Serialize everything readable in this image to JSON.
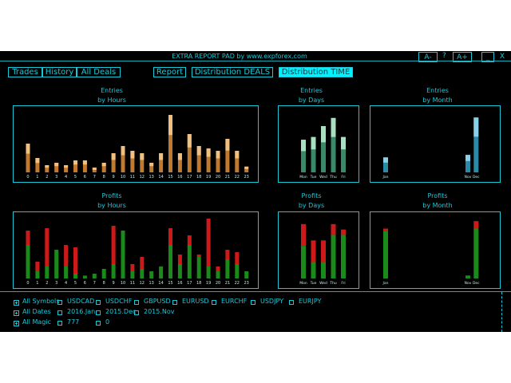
{
  "window": {
    "title": "EXTRA REPORT PAD by www.expforex.com",
    "font_minus": "A-",
    "font_help": "?",
    "font_plus": "A+",
    "minimize": "_",
    "close": "X"
  },
  "tabs": {
    "left": [
      "Trades",
      "History",
      "All Deals"
    ],
    "report": "Report",
    "dist_deals": "Distribution DEALS",
    "dist_time": "Distribution TIME",
    "active": "Distribution TIME"
  },
  "colors": {
    "accent": "#19c8d8",
    "entries_bar": "#c07a30",
    "entries_top": "#f0c080",
    "days_bar": "#3a8a6a",
    "days_top": "#a8e0c0",
    "month_bar": "#2a8aa8",
    "month_top": "#8ad0e8",
    "profit_green": "#1a8a1a",
    "profit_red": "#cc1a1a"
  },
  "chart_titles": {
    "entries_hours": [
      "Entries",
      "by Hours"
    ],
    "entries_days": [
      "Entries",
      "by Days"
    ],
    "entries_month": [
      "Entries",
      "by Month"
    ],
    "profits_hours": [
      "Profits",
      "by Hours"
    ],
    "profits_days": [
      "Profits",
      "by Days"
    ],
    "profits_month": [
      "Profits",
      "by Month"
    ]
  },
  "chart_data": [
    {
      "id": "entries_hours",
      "type": "bar",
      "categories": [
        "0",
        "1",
        "2",
        "3",
        "4",
        "5",
        "6",
        "7",
        "8",
        "9",
        "10",
        "11",
        "12",
        "13",
        "14",
        "15",
        "16",
        "17",
        "18",
        "19",
        "20",
        "21",
        "22",
        "23"
      ],
      "values": [
        6,
        3,
        1.5,
        2,
        1.5,
        2.5,
        2.5,
        1,
        2,
        4,
        5.5,
        4.5,
        4,
        2,
        4,
        12,
        4,
        8,
        5.5,
        5,
        4.5,
        7,
        4.5,
        1.2
      ]
    },
    {
      "id": "entries_days",
      "type": "bar",
      "categories": [
        "Mon",
        "Tue",
        "Wed",
        "Thu",
        "Fri"
      ],
      "values": [
        6,
        6.5,
        8.5,
        10,
        6.5
      ]
    },
    {
      "id": "entries_month",
      "type": "bar",
      "categories": [
        "Jan",
        "Feb",
        "Mar",
        "Apr",
        "May",
        "Jun",
        "Jul",
        "Aug",
        "Sep",
        "Oct",
        "Nov",
        "Dec"
      ],
      "tick_labels": [
        "Jan",
        "",
        "",
        "",
        "",
        "",
        "",
        "",
        "",
        "",
        "Nov",
        "Dec"
      ],
      "values": [
        3,
        0,
        0,
        0,
        0,
        0,
        0,
        0,
        0,
        0,
        3.5,
        11
      ]
    },
    {
      "id": "profits_hours",
      "type": "bar",
      "categories": [
        "0",
        "1",
        "2",
        "3",
        "4",
        "5",
        "6",
        "7",
        "8",
        "9",
        "10",
        "11",
        "12",
        "13",
        "14",
        "15",
        "16",
        "17",
        "18",
        "19",
        "20",
        "21",
        "22",
        "23"
      ],
      "series": [
        {
          "name": "profit",
          "values": [
            7,
            1.5,
            2.5,
            6,
            2.5,
            1,
            0.6,
            1,
            2,
            3,
            10,
            1.5,
            2,
            1.5,
            2.5,
            7,
            3,
            7,
            4.5,
            2.5,
            1.5,
            4,
            3,
            1.5
          ]
        },
        {
          "name": "loss",
          "values": [
            3,
            2,
            8,
            0,
            4.5,
            5.5,
            0,
            0,
            0,
            8,
            0,
            1.5,
            2.5,
            0,
            0,
            3.5,
            2,
            2,
            0.5,
            10,
            1,
            2,
            2.5,
            0
          ]
        }
      ]
    },
    {
      "id": "profits_days",
      "type": "bar",
      "categories": [
        "Mon",
        "Tue",
        "Wed",
        "Thu",
        "Fri"
      ],
      "series": [
        {
          "name": "profit",
          "values": [
            6,
            3,
            3,
            8,
            8
          ]
        },
        {
          "name": "loss",
          "values": [
            4,
            4,
            4,
            2,
            1
          ]
        }
      ]
    },
    {
      "id": "profits_month",
      "type": "bar",
      "categories": [
        "Jan",
        "Feb",
        "Mar",
        "Apr",
        "May",
        "Jun",
        "Jul",
        "Aug",
        "Sep",
        "Oct",
        "Nov",
        "Dec"
      ],
      "tick_labels": [
        "Jan",
        "",
        "",
        "",
        "",
        "",
        "",
        "",
        "",
        "",
        "Nov",
        "Dec"
      ],
      "series": [
        {
          "name": "profit",
          "values": [
            9.5,
            0,
            0,
            0,
            0,
            0,
            0,
            0,
            0,
            0,
            0.6,
            10
          ]
        },
        {
          "name": "loss",
          "values": [
            0.5,
            0,
            0,
            0,
            0,
            0,
            0,
            0,
            0,
            0,
            0,
            1.5
          ]
        }
      ]
    }
  ],
  "filters": {
    "symbols": {
      "label": "All Symbols",
      "items": [
        "USDCAD",
        "USDCHF",
        "GBPUSD",
        "EURUSD",
        "EURCHF",
        "USDJPY",
        "EURJPY"
      ]
    },
    "dates": {
      "label": "All Dates",
      "items": [
        "2016.Jan",
        "2015.Dec",
        "2015.Nov"
      ]
    },
    "magic": {
      "label": "All Magic",
      "items": [
        "777",
        "0"
      ]
    }
  }
}
